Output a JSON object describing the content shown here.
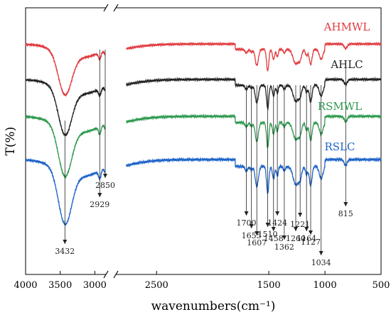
{
  "chart_data": {
    "type": "line",
    "xlabel": "wavenumbers(cm⁻¹)",
    "ylabel": "T(%)",
    "title": "",
    "x_axis": {
      "reversed": true,
      "broken": true,
      "segments": [
        [
          4000,
          2850
        ],
        [
          2850,
          500
        ]
      ]
    },
    "xticks": [
      4000,
      3500,
      3000,
      2500,
      1500,
      1000,
      500
    ],
    "xtick_labels": [
      "4000",
      "3500",
      "3000",
      "2500",
      "1500",
      "1000",
      "500"
    ],
    "grid": false,
    "legend": "right, labels beside curves",
    "series": [
      {
        "name": "AHMWL",
        "color": "#e0393e",
        "offset": 0
      },
      {
        "name": "AHLC",
        "color": "#222222",
        "offset": 1
      },
      {
        "name": "RSMWL",
        "color": "#2e9a4f",
        "offset": 2
      },
      {
        "name": "RSLC",
        "color": "#1e64c8",
        "offset": 3
      }
    ],
    "peaks": [
      3432,
      2929,
      2850,
      1700,
      1655,
      1607,
      1510,
      1458,
      1424,
      1362,
      1260,
      1221,
      1164,
      1127,
      1034,
      815
    ],
    "peak_labels": [
      "3432",
      "2929",
      "2850",
      "1700",
      "1655",
      "1607",
      "1510",
      "1458",
      "1424",
      "1362",
      "1260",
      "1221",
      "1164",
      "1127",
      "1034",
      "815"
    ]
  }
}
